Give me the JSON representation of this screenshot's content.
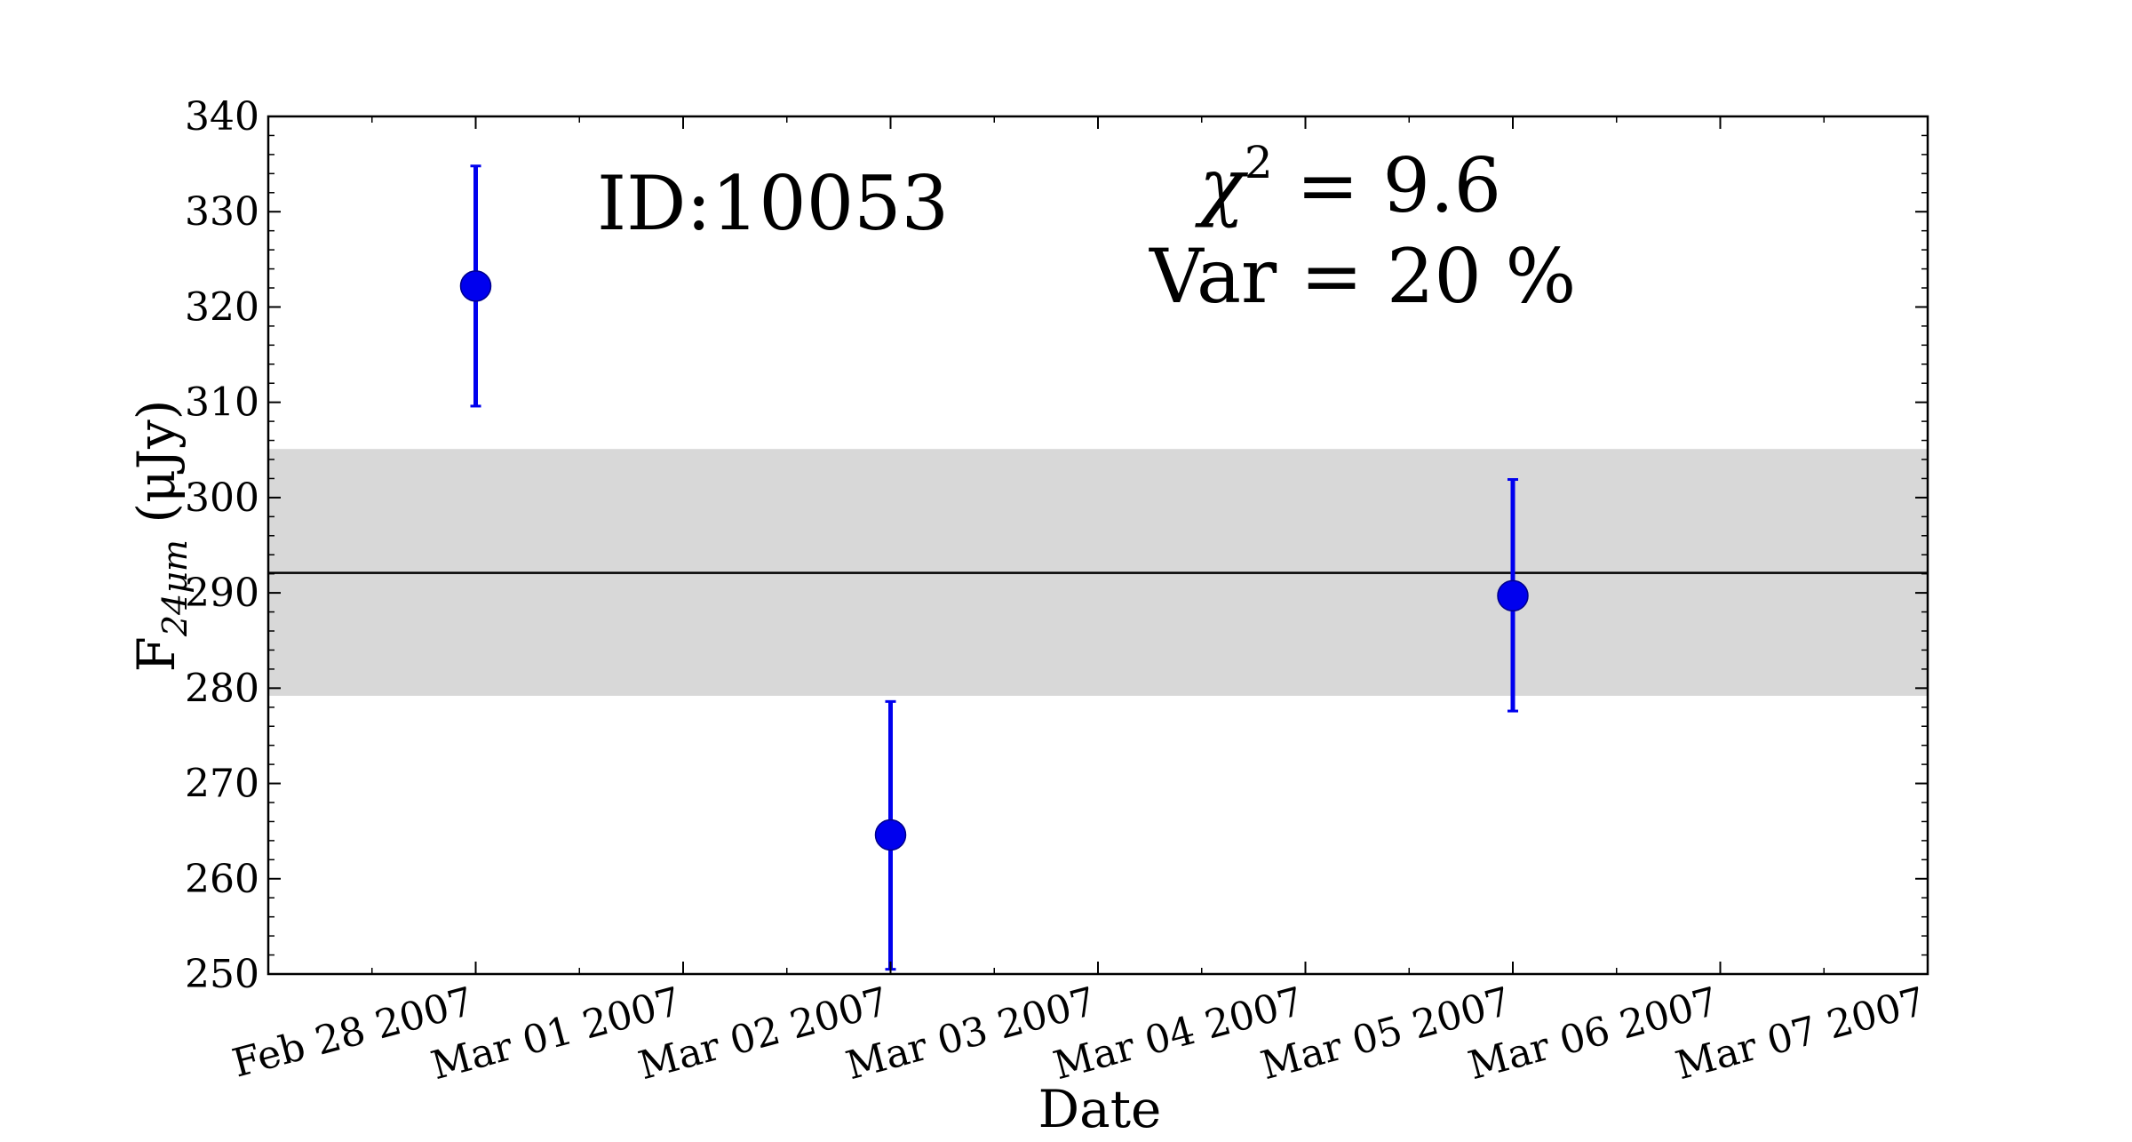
{
  "chart_data": {
    "type": "scatter",
    "id_label": "ID:10053",
    "chi2": {
      "symbol": "χ",
      "superscript": "2",
      "text": " = 9.6"
    },
    "var_text": "Var = 20 %",
    "xlabel": "Date",
    "ylabel": {
      "main": "F",
      "subscript": "24μm",
      "unit": " (μJy)"
    },
    "ylim": [
      250,
      340
    ],
    "yticks": [
      250,
      260,
      270,
      280,
      290,
      300,
      310,
      320,
      330,
      340
    ],
    "xlim": [
      "2007-02-27T00:00",
      "2007-03-07T00:00"
    ],
    "xticks": [
      {
        "date": "2007-02-28T00:00",
        "label": "Feb 28 2007"
      },
      {
        "date": "2007-03-01T00:00",
        "label": "Mar 01 2007"
      },
      {
        "date": "2007-03-02T00:00",
        "label": "Mar 02 2007"
      },
      {
        "date": "2007-03-03T00:00",
        "label": "Mar 03 2007"
      },
      {
        "date": "2007-03-04T00:00",
        "label": "Mar 04 2007"
      },
      {
        "date": "2007-03-05T00:00",
        "label": "Mar 05 2007"
      },
      {
        "date": "2007-03-06T00:00",
        "label": "Mar 06 2007"
      },
      {
        "date": "2007-03-07T00:00",
        "label": "Mar 07 2007"
      }
    ],
    "points": [
      {
        "date": "2007-02-28T00:00",
        "y": 322.2,
        "yerr_low": 309.6,
        "yerr_high": 334.8
      },
      {
        "date": "2007-03-02T00:00",
        "y": 264.6,
        "yerr_low": 250.5,
        "yerr_high": 278.6
      },
      {
        "date": "2007-03-05T00:00",
        "y": 289.7,
        "yerr_low": 277.6,
        "yerr_high": 301.9
      }
    ],
    "mean_line": 292.1,
    "band": [
      279.2,
      305.1
    ],
    "colors": {
      "points": "#0000ee",
      "band": "#d8d8d8",
      "mean": "#000000"
    },
    "grid": false,
    "legend": "none"
  }
}
